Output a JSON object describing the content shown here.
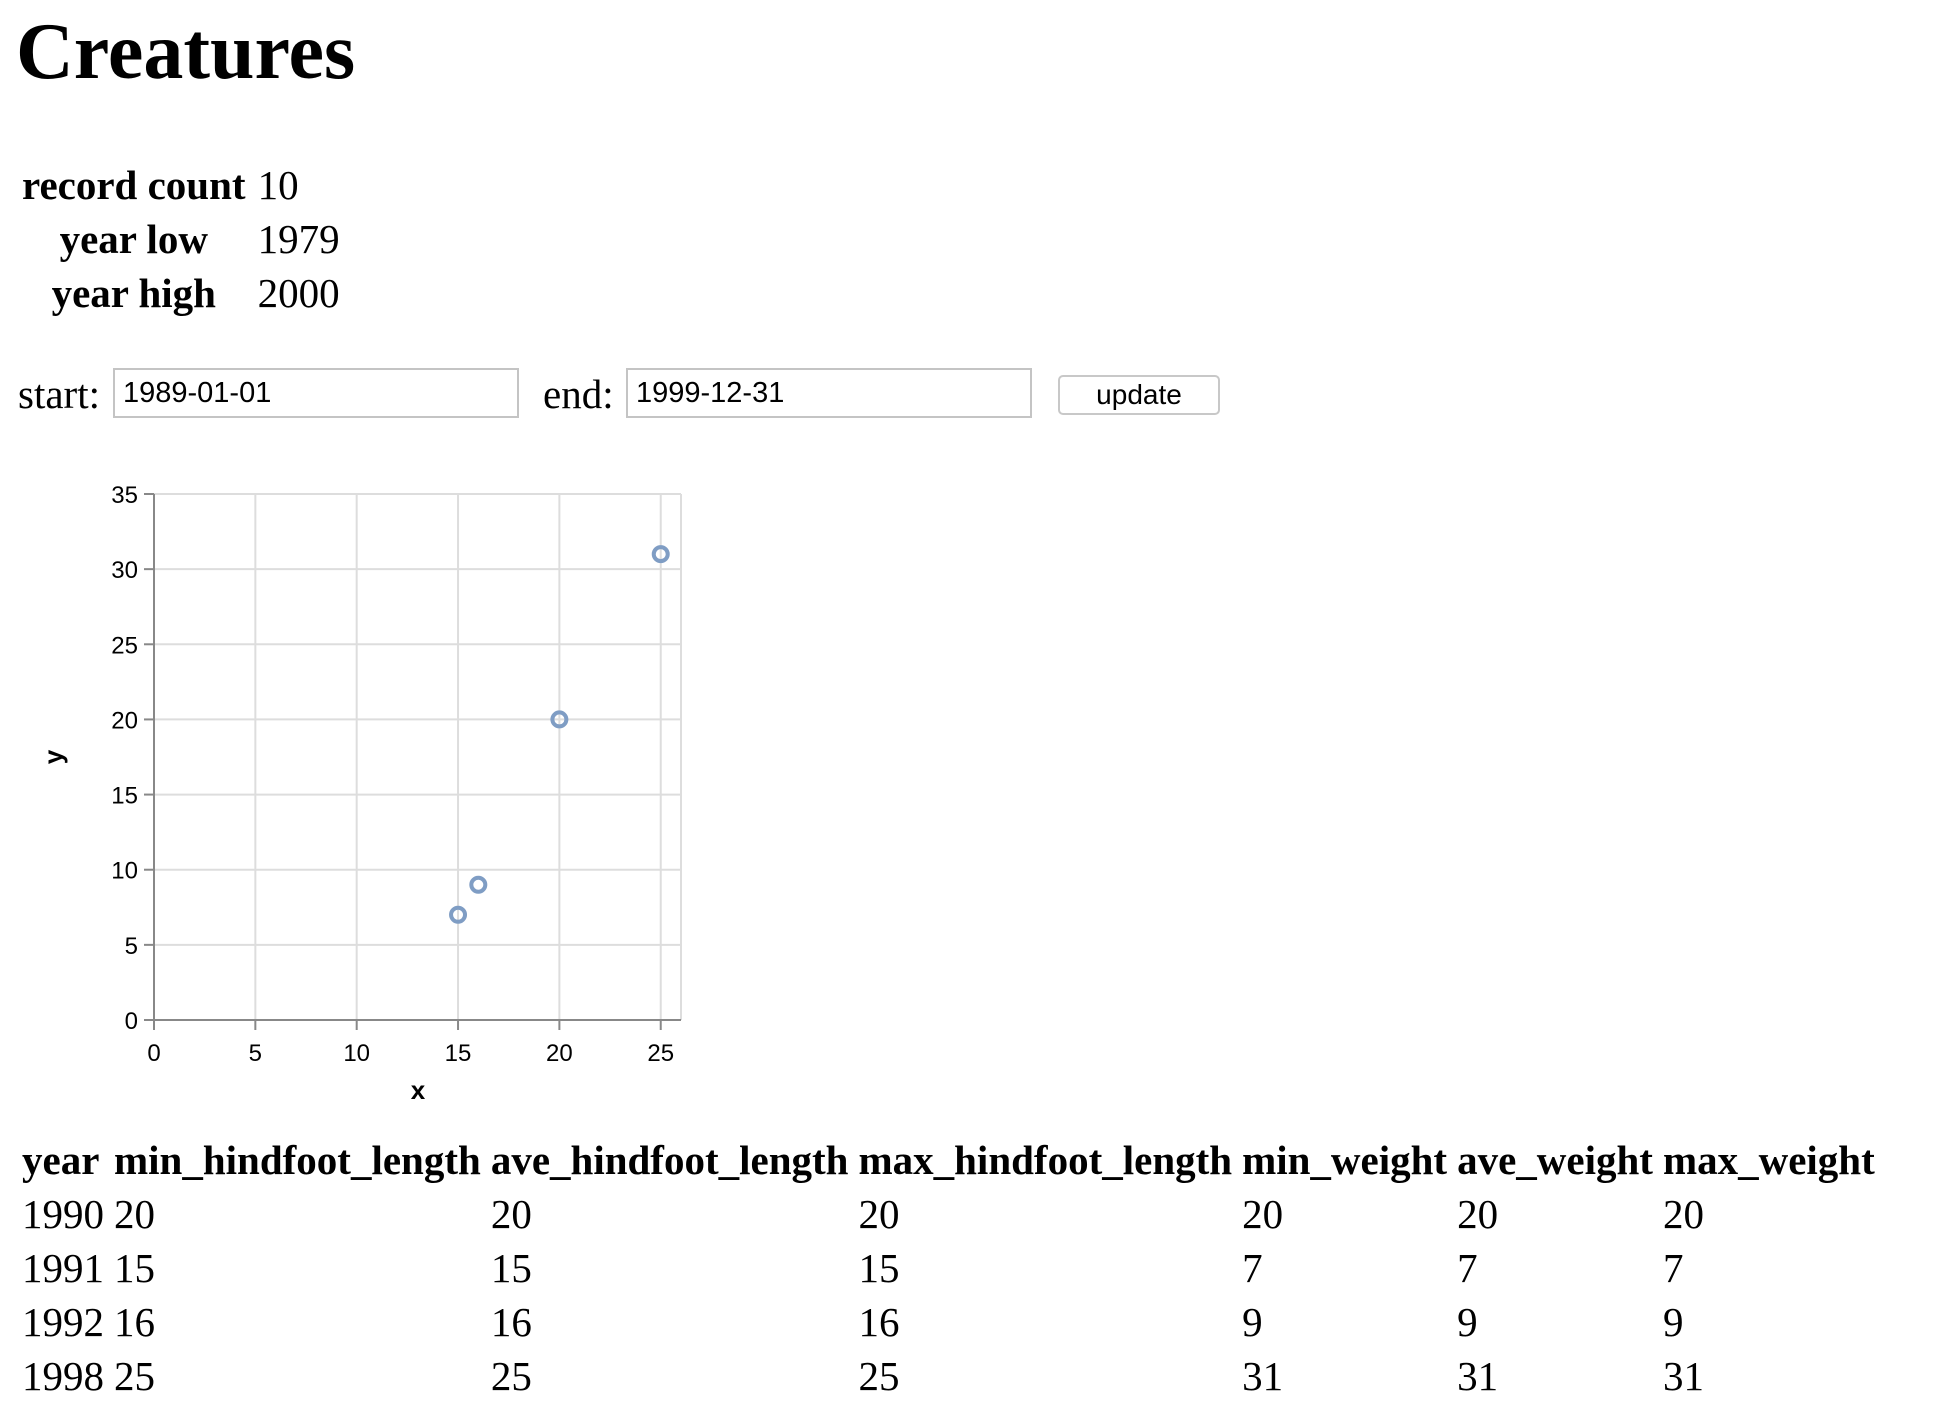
{
  "page": {
    "title": "Creatures"
  },
  "stats": [
    {
      "label": "record count",
      "value": "10"
    },
    {
      "label": "year low",
      "value": "1979"
    },
    {
      "label": "year high",
      "value": "2000"
    }
  ],
  "filter": {
    "start_label": "start:",
    "start_value": "1989-01-01",
    "end_label": "end:",
    "end_value": "1999-12-31",
    "update_label": "update"
  },
  "chart_data": {
    "type": "scatter",
    "xlabel": "x",
    "ylabel": "y",
    "xlim": [
      0,
      26
    ],
    "ylim": [
      0,
      35
    ],
    "x_ticks": [
      0,
      5,
      10,
      15,
      20,
      25
    ],
    "y_ticks": [
      0,
      5,
      10,
      15,
      20,
      25,
      30,
      35
    ],
    "grid": true,
    "point_color": "#7f9dc4",
    "points": [
      {
        "x": 20,
        "y": 20
      },
      {
        "x": 15,
        "y": 7
      },
      {
        "x": 16,
        "y": 9
      },
      {
        "x": 25,
        "y": 31
      }
    ]
  },
  "table": {
    "columns": [
      "year",
      "min_hindfoot_length",
      "ave_hindfoot_length",
      "max_hindfoot_length",
      "min_weight",
      "ave_weight",
      "max_weight"
    ],
    "rows": [
      [
        "1990",
        "20",
        "20",
        "20",
        "20",
        "20",
        "20"
      ],
      [
        "1991",
        "15",
        "15",
        "15",
        "7",
        "7",
        "7"
      ],
      [
        "1992",
        "16",
        "16",
        "16",
        "9",
        "9",
        "9"
      ],
      [
        "1998",
        "25",
        "25",
        "25",
        "31",
        "31",
        "31"
      ]
    ]
  }
}
